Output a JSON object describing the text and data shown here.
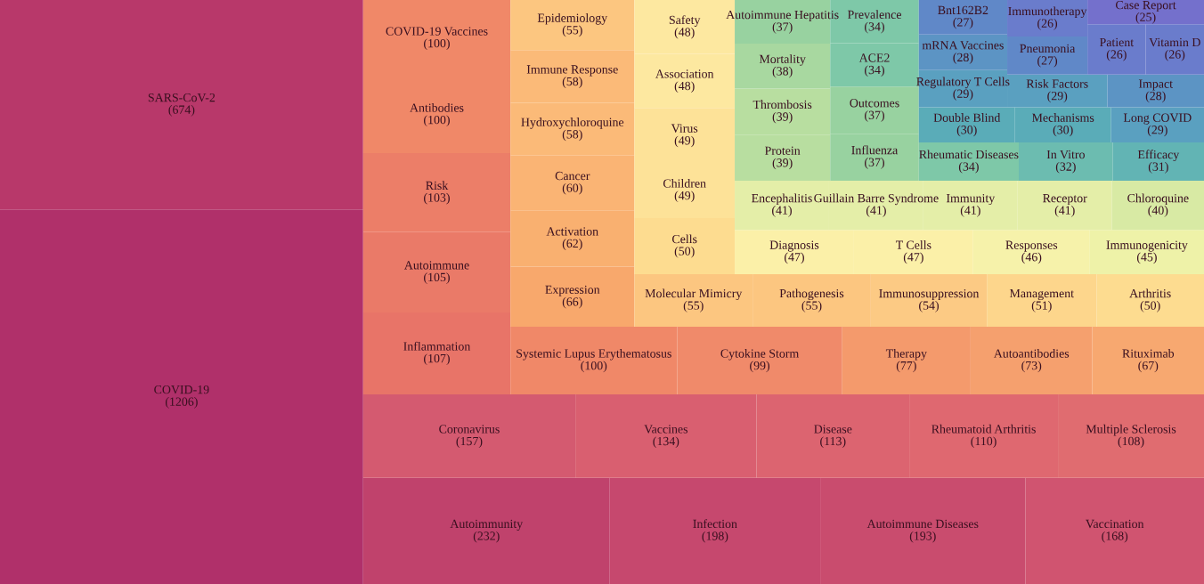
{
  "chart_data": {
    "type": "other",
    "categories": [
      "COVID-19",
      "SARS-CoV-2",
      "Autoimmunity",
      "Infection",
      "Autoimmune Diseases",
      "Vaccination",
      "Coronavirus",
      "Vaccines",
      "Disease",
      "Rheumatoid Arthritis",
      "Multiple Sclerosis",
      "Inflammation",
      "Autoimmune",
      "Risk",
      "Antibodies",
      "COVID-19 Vaccines",
      "Systemic Lupus Erythematosus",
      "Cytokine Storm",
      "Therapy",
      "Autoantibodies",
      "Rituximab",
      "Expression",
      "Activation",
      "Cancer",
      "Hydroxychloroquine",
      "Immune Response",
      "Epidemiology",
      "Molecular Mimicry",
      "Pathogenesis",
      "Immunosuppression",
      "Management",
      "Arthritis",
      "Cells",
      "Children",
      "Virus",
      "Association",
      "Safety",
      "Diagnosis",
      "T Cells",
      "Responses",
      "Immunogenicity",
      "Encephalitis",
      "Guillain Barre Syndrome",
      "Immunity",
      "Receptor",
      "Chloroquine",
      "Protein",
      "Thrombosis",
      "Mortality",
      "Autoimmune Hepatitis",
      "Influenza",
      "Outcomes",
      "ACE2",
      "Prevalence",
      "Rheumatic Diseases",
      "In Vitro",
      "Efficacy",
      "Double Blind",
      "Mechanisms",
      "Long COVID",
      "Regulatory T Cells",
      "mRNA Vaccines",
      "Bnt162B2",
      "Risk Factors",
      "Impact",
      "Pneumonia",
      "Immunotherapy",
      "Patient",
      "Vitamin D",
      "Case Report"
    ],
    "values": [
      1206,
      674,
      232,
      198,
      193,
      168,
      157,
      134,
      113,
      110,
      108,
      107,
      105,
      103,
      100,
      100,
      100,
      99,
      77,
      73,
      67,
      66,
      62,
      60,
      58,
      58,
      55,
      55,
      55,
      54,
      51,
      50,
      50,
      49,
      49,
      48,
      48,
      47,
      47,
      46,
      45,
      41,
      41,
      41,
      41,
      40,
      39,
      39,
      38,
      37,
      37,
      37,
      34,
      34,
      34,
      32,
      31,
      30,
      30,
      29,
      29,
      28,
      27,
      29,
      28,
      27,
      26,
      26,
      26,
      25
    ],
    "value_labels": [
      "(1206)",
      "(674)",
      "(232)",
      "(198)",
      "(193)",
      "(168)",
      "(157)",
      "(134)",
      "(113)",
      "(110)",
      "(108)",
      "(107)",
      "(105)",
      "(103)",
      "(100)",
      "(100)",
      "(100)",
      "(99)",
      "(77)",
      "(73)",
      "(67)",
      "(66)",
      "(62)",
      "(60)",
      "(58)",
      "(58)",
      "(55)",
      "(55)",
      "(55)",
      "(54)",
      "(51)",
      "(50)",
      "(50)",
      "(49)",
      "(49)",
      "(48)",
      "(48)",
      "(47)",
      "(47)",
      "(46)",
      "(45)",
      "(41)",
      "(41)",
      "(41)",
      "(41)",
      "(40)",
      "(39)",
      "(39)",
      "(38)",
      "(37)",
      "(37)",
      "(37)",
      "(34)",
      "(34)",
      "(34)",
      "(32)",
      "(31)",
      "(30)",
      "(30)",
      "(29)",
      "(29)",
      "(28)",
      "(27)",
      "(29)",
      "(28)",
      "(27)",
      "(26)",
      "(26)",
      "(26)",
      "(25)"
    ],
    "colors": [
      "#b0306a",
      "#b8386a",
      "#c0426c",
      "#c6486e",
      "#c94c6e",
      "#d05470",
      "#d45a70",
      "#d95f70",
      "#dc6470",
      "#df6870",
      "#e06c70",
      "#e87468",
      "#ea7a68",
      "#ec7e68",
      "#f08868",
      "#f08868",
      "#f08868",
      "#f08a6a",
      "#f49a6c",
      "#f5a06e",
      "#f7a870",
      "#f8a86c",
      "#f9b070",
      "#fab474",
      "#fbba78",
      "#fbba78",
      "#fcc680",
      "#fcc680",
      "#fcc680",
      "#fcca84",
      "#fdd68c",
      "#fddc90",
      "#fddc90",
      "#fde298",
      "#fde298",
      "#fde8a0",
      "#fde8a0",
      "#fbf0a8",
      "#fbf0a8",
      "#f6f2aa",
      "#eef2a8",
      "#e4eea8",
      "#e4eea8",
      "#e4eea8",
      "#e4eea8",
      "#d8eaa4",
      "#b8dea0",
      "#b8dea0",
      "#a8d8a0",
      "#98d2a0",
      "#98d2a0",
      "#98d2a0",
      "#7ec8a8",
      "#7ec8a8",
      "#7ec8a8",
      "#6cbcb0",
      "#62b4b4",
      "#5aacb8",
      "#5aacb8",
      "#5aa0c0",
      "#5aa0c0",
      "#5c94c4",
      "#6088c8",
      "#5aa0c0",
      "#5c94c4",
      "#6088c8",
      "#6a7ccc",
      "#6a7ccc",
      "#6a7ccc",
      "#7470cc"
    ]
  }
}
